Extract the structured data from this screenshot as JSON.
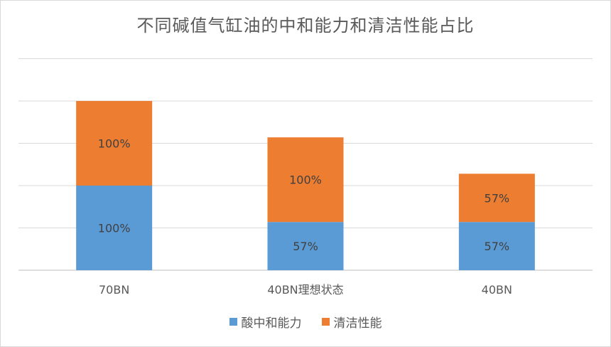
{
  "title": "不同碱值气缸油的中和能力和清洁性能占比",
  "legend": {
    "items": [
      {
        "label": "酸中和能力",
        "color": "#5b9bd5"
      },
      {
        "label": "清洁性能",
        "color": "#ed7d31"
      }
    ]
  },
  "chart_data": {
    "type": "bar",
    "stacked": true,
    "title": "不同碱值气缸油的中和能力和清洁性能占比",
    "categories": [
      "70BN",
      "40BN理想状态",
      "40BN"
    ],
    "series": [
      {
        "name": "酸中和能力",
        "color": "#5b9bd5",
        "values": [
          100,
          57,
          57
        ],
        "labels": [
          "100%",
          "57%",
          "57%"
        ]
      },
      {
        "name": "清洁性能",
        "color": "#ed7d31",
        "values": [
          100,
          100,
          57
        ],
        "labels": [
          "100%",
          "100%",
          "57%"
        ]
      }
    ],
    "ylim": [
      0,
      270
    ],
    "y_gridlines": [
      0,
      50,
      100,
      150,
      200,
      250
    ],
    "y_tick_labels_shown": false,
    "grid": true,
    "legend_position": "bottom"
  }
}
